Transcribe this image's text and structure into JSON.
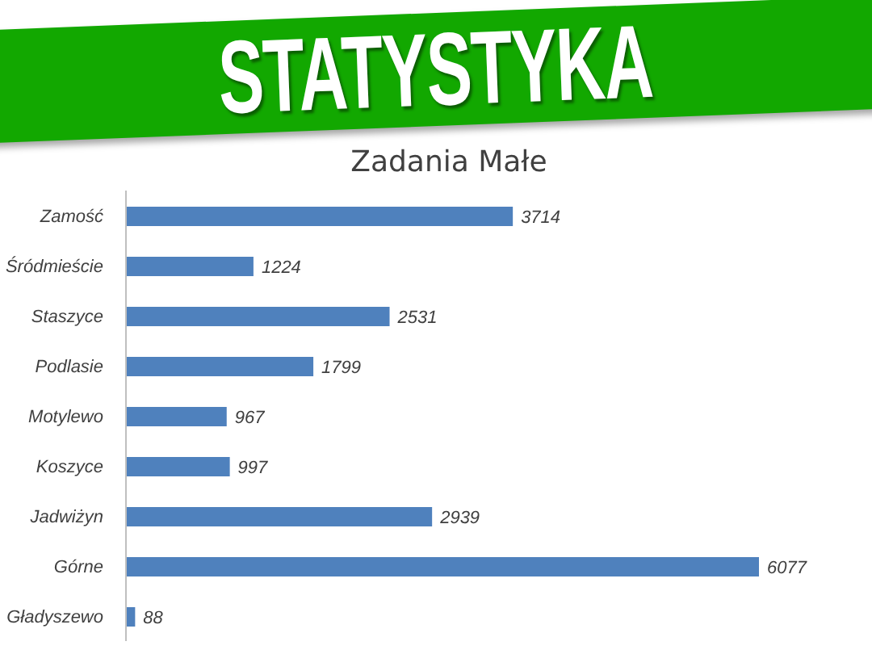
{
  "chart_data": {
    "type": "bar",
    "orientation": "horizontal",
    "title": "STATYSTYKA",
    "subtitle": "Zadania Małe",
    "categories": [
      "Zamość",
      "Śródmieście",
      "Staszyce",
      "Podlasie",
      "Motylewo",
      "Koszyce",
      "Jadwiżyn",
      "Górne",
      "Gładyszewo"
    ],
    "values": [
      3714,
      1224,
      2531,
      1799,
      967,
      997,
      2939,
      6077,
      88
    ],
    "color": "#4f81bd",
    "data_labels": true,
    "tick_labels": "y"
  }
}
